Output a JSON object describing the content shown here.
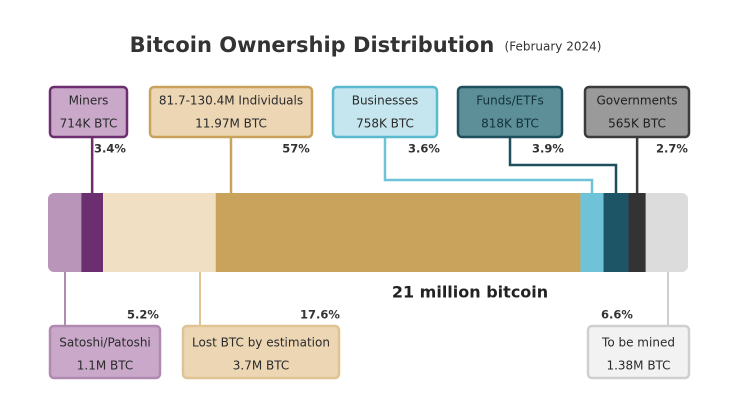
{
  "chart_data": {
    "type": "stacked_bar",
    "title": "Bitcoin Ownership Distribution",
    "subtitle": "(February 2024)",
    "total_label": "21 million bitcoin",
    "categories": [
      "Satoshi/Patoshi",
      "Miners",
      "Lost BTC by estimation",
      "81.7-130.4M Individuals",
      "Businesses",
      "Funds/ETFs",
      "Governments",
      "To be mined"
    ],
    "amounts": [
      "1.1M BTC",
      "714K BTC",
      "3.7M BTC",
      "11.97M BTC",
      "758K BTC",
      "818K BTC",
      "565K BTC",
      "1.38M BTC"
    ],
    "values": [
      5.2,
      3.4,
      17.6,
      57,
      3.6,
      3.9,
      2.7,
      6.6
    ],
    "value_labels": [
      "5.2%",
      "3.4%",
      "17.6%",
      "57%",
      "3.6%",
      "3.9%",
      "2.7%",
      "6.6%"
    ],
    "colors": [
      "#b995b9",
      "#6b2e6e",
      "#f1dfc4",
      "#c9a35c",
      "#6fc3d8",
      "#1d5566",
      "#333333",
      "#dcdcdc"
    ]
  }
}
